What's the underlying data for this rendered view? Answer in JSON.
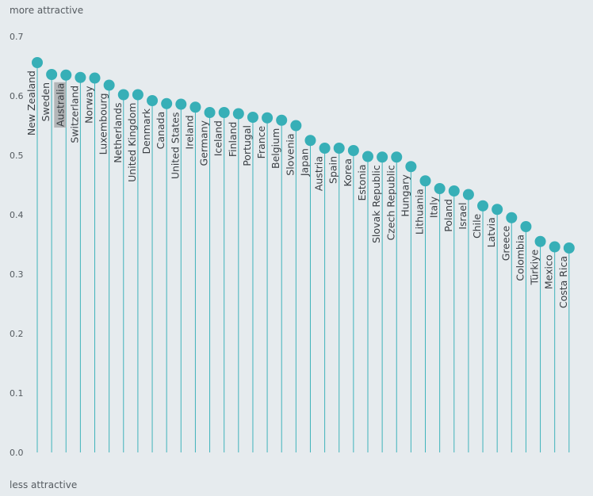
{
  "chart_data": {
    "type": "lollipop",
    "label_top": "more attractive",
    "label_bottom": "less attractive",
    "ylim": [
      0,
      0.7
    ],
    "yticks": [
      "0.0",
      "0.1",
      "0.2",
      "0.3",
      "0.4",
      "0.5",
      "0.6",
      "0.7"
    ],
    "ytick_values": [
      0,
      0.1,
      0.2,
      0.3,
      0.4,
      0.5,
      0.6,
      0.7
    ],
    "highlight": "Australia",
    "colors": {
      "point": "#37afb7",
      "stem": "#3fb3bb",
      "background": "#e6ebee",
      "highlight": "#b3b6b8"
    },
    "categories": [
      "New Zealand",
      "Sweden",
      "Australia",
      "Switzerland",
      "Norway",
      "Luxembourg",
      "Netherlands",
      "United Kingdom",
      "Denmark",
      "Canada",
      "United States",
      "Ireland",
      "Germany",
      "Iceland",
      "Finland",
      "Portugal",
      "France",
      "Belgium",
      "Slovenia",
      "Japan",
      "Austria",
      "Spain",
      "Korea",
      "Estonia",
      "Slovak Republic",
      "Czech Republic",
      "Hungary",
      "Lithuania",
      "Italy",
      "Poland",
      "Israel",
      "Chile",
      "Latvia",
      "Greece",
      "Colombia",
      "Türkiye",
      "Mexico",
      "Costa Rica"
    ],
    "values": [
      0.656,
      0.636,
      0.635,
      0.631,
      0.63,
      0.618,
      0.602,
      0.602,
      0.592,
      0.587,
      0.586,
      0.581,
      0.572,
      0.572,
      0.57,
      0.564,
      0.563,
      0.559,
      0.55,
      0.525,
      0.512,
      0.512,
      0.508,
      0.498,
      0.497,
      0.497,
      0.481,
      0.457,
      0.444,
      0.44,
      0.434,
      0.415,
      0.409,
      0.395,
      0.38,
      0.355,
      0.346,
      0.344
    ]
  }
}
